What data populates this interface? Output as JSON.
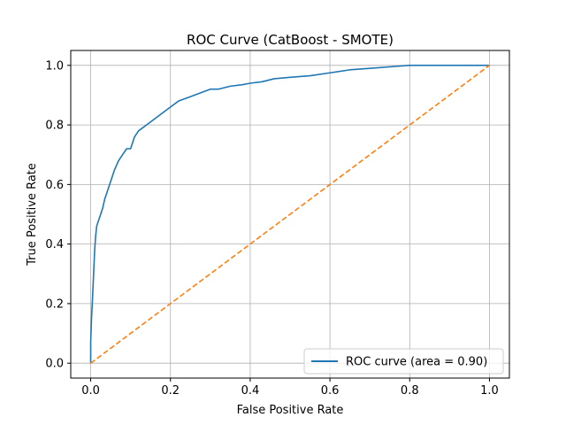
{
  "chart_data": {
    "type": "line",
    "title": "ROC Curve (CatBoost - SMOTE)",
    "xlabel": "False Positive Rate",
    "ylabel": "True Positive Rate",
    "xlim": [
      -0.05,
      1.05
    ],
    "ylim": [
      -0.05,
      1.05
    ],
    "xticks": [
      0.0,
      0.2,
      0.4,
      0.6,
      0.8,
      1.0
    ],
    "yticks": [
      0.0,
      0.2,
      0.4,
      0.6,
      0.8,
      1.0
    ],
    "xtick_labels": [
      "0.0",
      "0.2",
      "0.4",
      "0.6",
      "0.8",
      "1.0"
    ],
    "ytick_labels": [
      "0.0",
      "0.2",
      "0.4",
      "0.6",
      "0.8",
      "1.0"
    ],
    "grid": true,
    "legend_position": "lower-right",
    "series": [
      {
        "name": "ROC curve (area = 0.90)",
        "color": "#1f77b4",
        "style": "solid",
        "x": [
          0.0,
          0.0,
          0.002,
          0.004,
          0.006,
          0.008,
          0.01,
          0.012,
          0.015,
          0.02,
          0.025,
          0.03,
          0.035,
          0.04,
          0.045,
          0.05,
          0.055,
          0.06,
          0.07,
          0.08,
          0.09,
          0.1,
          0.11,
          0.12,
          0.13,
          0.14,
          0.15,
          0.16,
          0.17,
          0.18,
          0.2,
          0.22,
          0.24,
          0.26,
          0.28,
          0.3,
          0.32,
          0.35,
          0.38,
          0.4,
          0.43,
          0.46,
          0.5,
          0.55,
          0.6,
          0.65,
          0.7,
          0.75,
          0.8,
          0.85,
          0.9,
          0.95,
          1.0
        ],
        "y": [
          0.0,
          0.07,
          0.15,
          0.2,
          0.26,
          0.32,
          0.38,
          0.42,
          0.46,
          0.48,
          0.5,
          0.52,
          0.55,
          0.57,
          0.59,
          0.61,
          0.63,
          0.65,
          0.68,
          0.7,
          0.72,
          0.72,
          0.76,
          0.78,
          0.79,
          0.8,
          0.81,
          0.82,
          0.83,
          0.84,
          0.86,
          0.88,
          0.89,
          0.9,
          0.91,
          0.92,
          0.92,
          0.93,
          0.935,
          0.94,
          0.945,
          0.955,
          0.96,
          0.965,
          0.975,
          0.985,
          0.99,
          0.995,
          1.0,
          1.0,
          1.0,
          1.0,
          1.0
        ]
      },
      {
        "name": "",
        "color": "#ff7f0e",
        "style": "dashed",
        "x": [
          0.0,
          1.0
        ],
        "y": [
          0.0,
          1.0
        ]
      }
    ]
  }
}
